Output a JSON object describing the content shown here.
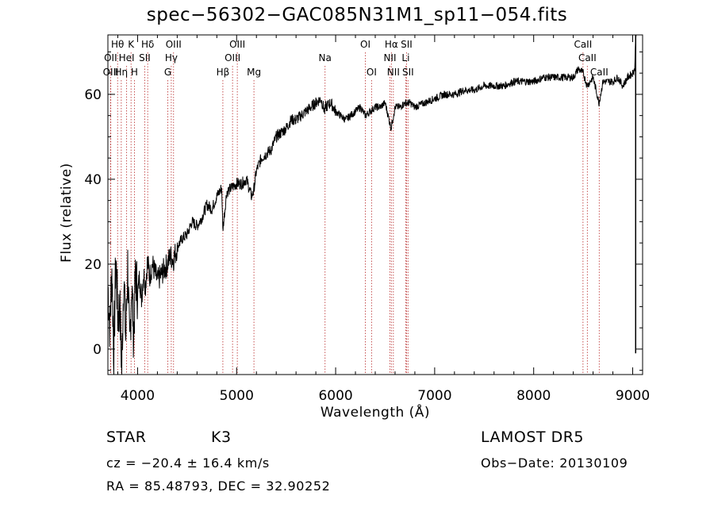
{
  "chart_data": {
    "type": "line",
    "title": "spec−56302−GAC085N31M1_sp11−054.fits",
    "xlabel": "Wavelength (Å)",
    "ylabel": "Flux (relative)",
    "xlim": [
      3700,
      9100
    ],
    "ylim": [
      -6,
      74
    ],
    "xticks": [
      4000,
      5000,
      6000,
      7000,
      8000,
      9000
    ],
    "yticks": [
      0,
      20,
      40,
      60
    ],
    "grid": false,
    "series": [
      {
        "x": [
          3700,
          3720,
          3740,
          3760,
          3780,
          3800,
          3820,
          3840,
          3860,
          3880,
          3900,
          3920,
          3940,
          3960,
          3980,
          4000,
          4020,
          4040,
          4060,
          4080,
          4100,
          4120,
          4150,
          4200,
          4250,
          4300,
          4330,
          4360,
          4400,
          4450,
          4500,
          4550,
          4600,
          4650,
          4700,
          4750,
          4800,
          4850,
          4860,
          4900,
          4950,
          5000,
          5050,
          5100,
          5150,
          5170,
          5200,
          5250,
          5300,
          5350,
          5400,
          5450,
          5500,
          5550,
          5600,
          5650,
          5700,
          5750,
          5800,
          5850,
          5890,
          5900,
          5950,
          6000,
          6050,
          6100,
          6150,
          6200,
          6250,
          6300,
          6350,
          6400,
          6450,
          6500,
          6560,
          6600,
          6650,
          6700,
          6750,
          6800,
          6900,
          7000,
          7100,
          7200,
          7300,
          7400,
          7500,
          7600,
          7700,
          7800,
          7900,
          8000,
          8100,
          8200,
          8300,
          8400,
          8450,
          8500,
          8540,
          8600,
          8660,
          8700,
          8750,
          8800,
          8850,
          8900,
          8950,
          9000,
          9020,
          9040
        ],
        "y": [
          15,
          5,
          19,
          -2,
          22,
          8,
          10,
          -5,
          18,
          2,
          20,
          -1,
          16,
          3,
          18,
          13,
          17,
          12,
          18,
          15,
          21,
          17,
          20,
          16,
          18,
          20,
          22,
          21,
          24,
          26,
          27,
          30,
          29,
          31,
          34,
          33,
          36,
          38,
          28,
          37,
          38,
          39,
          39,
          40,
          36,
          37,
          42,
          45,
          46,
          47,
          50,
          51,
          52,
          54,
          54,
          55,
          56,
          57,
          58,
          59,
          56,
          57,
          58,
          56,
          55,
          54,
          55,
          56,
          57,
          55,
          56,
          57,
          57,
          58,
          52,
          57,
          57,
          58,
          58,
          57,
          58,
          59,
          60,
          60,
          61,
          61,
          62,
          62,
          62,
          63,
          63,
          63,
          64,
          64,
          64,
          64,
          66,
          65,
          62,
          64,
          58,
          63,
          63,
          63,
          64,
          62,
          64,
          65,
          66,
          80
        ]
      }
    ],
    "lines": [
      {
        "label": "Hθ",
        "x": 3798,
        "row": 0
      },
      {
        "label": "OII",
        "x": 3727,
        "row": 1
      },
      {
        "label": "OIII",
        "x": 3729,
        "row": 2
      },
      {
        "label": "K",
        "x": 3934,
        "row": 0
      },
      {
        "label": "HeI",
        "x": 3889,
        "row": 1
      },
      {
        "label": "Hη",
        "x": 3835,
        "row": 2
      },
      {
        "label": "Hδ",
        "x": 4102,
        "row": 0
      },
      {
        "label": "SII",
        "x": 4072,
        "row": 1
      },
      {
        "label": "H",
        "x": 3968,
        "row": 2
      },
      {
        "label": "OIII",
        "x": 4363,
        "row": 0
      },
      {
        "label": "Hγ",
        "x": 4340,
        "row": 1
      },
      {
        "label": "G",
        "x": 4305,
        "row": 2
      },
      {
        "label": "OIII",
        "x": 5007,
        "row": 0
      },
      {
        "label": "OIII",
        "x": 4959,
        "row": 1
      },
      {
        "label": "Hβ",
        "x": 4861,
        "row": 2
      },
      {
        "label": "Mg",
        "x": 5175,
        "row": 2
      },
      {
        "label": "Na",
        "x": 5893,
        "row": 1
      },
      {
        "label": "OI",
        "x": 6300,
        "row": 0
      },
      {
        "label": "OI",
        "x": 6363,
        "row": 2
      },
      {
        "label": "Hα",
        "x": 6563,
        "row": 0
      },
      {
        "label": "SII",
        "x": 6716,
        "row": 0
      },
      {
        "label": "NII",
        "x": 6548,
        "row": 1
      },
      {
        "label": "Li",
        "x": 6708,
        "row": 1
      },
      {
        "label": "NII",
        "x": 6583,
        "row": 2
      },
      {
        "label": "SII",
        "x": 6731,
        "row": 2
      },
      {
        "label": "CaII",
        "x": 8498,
        "row": 0
      },
      {
        "label": "CaII",
        "x": 8542,
        "row": 1
      },
      {
        "label": "CaII",
        "x": 8662,
        "row": 2
      }
    ]
  },
  "info": {
    "class": "STAR",
    "subclass": "K3",
    "survey": "LAMOST DR5",
    "cz": "cz = −20.4 ± 16.4 km/s",
    "obs_date": "Obs−Date: 20130109",
    "radec": "RA =  85.48793, DEC =  32.90252"
  }
}
